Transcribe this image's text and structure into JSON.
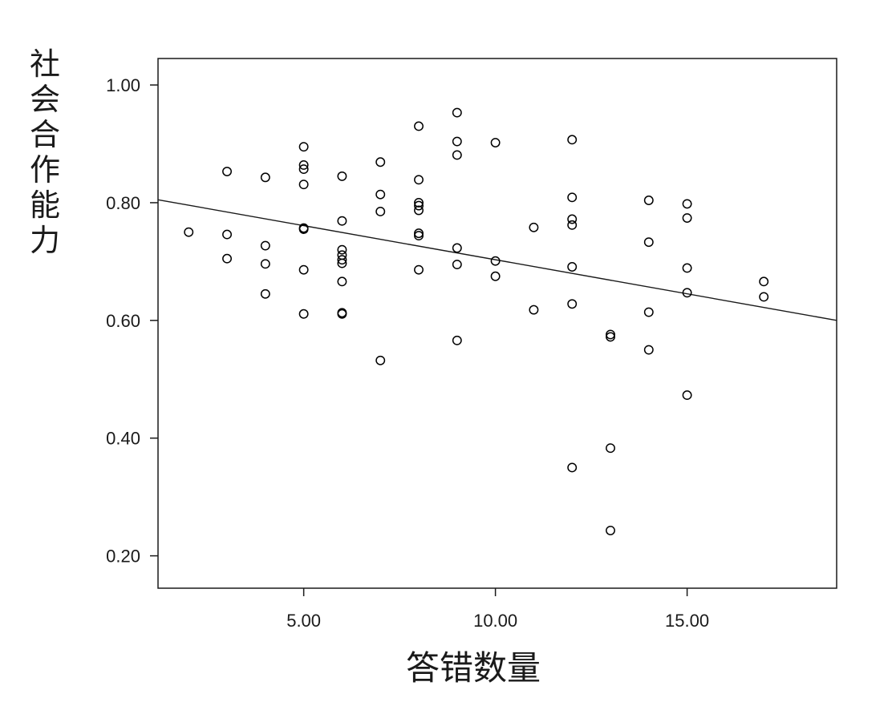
{
  "chart_data": {
    "type": "scatter",
    "title": "",
    "xlabel": "答错数量",
    "ylabel": "社会合作能力",
    "xlim": [
      1.2,
      18.9
    ],
    "ylim": [
      0.145,
      1.045
    ],
    "x_ticks": [
      {
        "value": 5,
        "label": "5.00"
      },
      {
        "value": 10,
        "label": "10.00"
      },
      {
        "value": 15,
        "label": "15.00"
      }
    ],
    "y_ticks": [
      {
        "value": 0.2,
        "label": "0.20"
      },
      {
        "value": 0.4,
        "label": "0.40"
      },
      {
        "value": 0.6,
        "label": "0.60"
      },
      {
        "value": 0.8,
        "label": "0.80"
      },
      {
        "value": 1.0,
        "label": "1.00"
      }
    ],
    "grid": false,
    "legend": "none",
    "marker": "open-circle",
    "marker_color": "#000000",
    "fit_line": {
      "x": [
        1.2,
        18.9
      ],
      "y": [
        0.805,
        0.6
      ]
    },
    "points": [
      {
        "x": 2,
        "y": 0.75
      },
      {
        "x": 3,
        "y": 0.853
      },
      {
        "x": 3,
        "y": 0.746
      },
      {
        "x": 3,
        "y": 0.705
      },
      {
        "x": 4,
        "y": 0.843
      },
      {
        "x": 4,
        "y": 0.727
      },
      {
        "x": 4,
        "y": 0.696
      },
      {
        "x": 4,
        "y": 0.645
      },
      {
        "x": 5,
        "y": 0.895
      },
      {
        "x": 5,
        "y": 0.864
      },
      {
        "x": 5,
        "y": 0.857
      },
      {
        "x": 5,
        "y": 0.831
      },
      {
        "x": 5,
        "y": 0.757
      },
      {
        "x": 5,
        "y": 0.755
      },
      {
        "x": 5,
        "y": 0.686
      },
      {
        "x": 5,
        "y": 0.611
      },
      {
        "x": 6,
        "y": 0.845
      },
      {
        "x": 6,
        "y": 0.769
      },
      {
        "x": 6,
        "y": 0.72
      },
      {
        "x": 6,
        "y": 0.711
      },
      {
        "x": 6,
        "y": 0.703
      },
      {
        "x": 6,
        "y": 0.697
      },
      {
        "x": 6,
        "y": 0.666
      },
      {
        "x": 6,
        "y": 0.613
      },
      {
        "x": 6,
        "y": 0.611
      },
      {
        "x": 7,
        "y": 0.869
      },
      {
        "x": 7,
        "y": 0.814
      },
      {
        "x": 7,
        "y": 0.785
      },
      {
        "x": 7,
        "y": 0.532
      },
      {
        "x": 8,
        "y": 0.93
      },
      {
        "x": 8,
        "y": 0.839
      },
      {
        "x": 8,
        "y": 0.8
      },
      {
        "x": 8,
        "y": 0.795
      },
      {
        "x": 8,
        "y": 0.787
      },
      {
        "x": 8,
        "y": 0.748
      },
      {
        "x": 8,
        "y": 0.744
      },
      {
        "x": 8,
        "y": 0.686
      },
      {
        "x": 9,
        "y": 0.953
      },
      {
        "x": 9,
        "y": 0.904
      },
      {
        "x": 9,
        "y": 0.881
      },
      {
        "x": 9,
        "y": 0.723
      },
      {
        "x": 9,
        "y": 0.695
      },
      {
        "x": 9,
        "y": 0.566
      },
      {
        "x": 10,
        "y": 0.902
      },
      {
        "x": 10,
        "y": 0.701
      },
      {
        "x": 10,
        "y": 0.675
      },
      {
        "x": 11,
        "y": 0.758
      },
      {
        "x": 11,
        "y": 0.618
      },
      {
        "x": 12,
        "y": 0.907
      },
      {
        "x": 12,
        "y": 0.809
      },
      {
        "x": 12,
        "y": 0.772
      },
      {
        "x": 12,
        "y": 0.762
      },
      {
        "x": 12,
        "y": 0.691
      },
      {
        "x": 12,
        "y": 0.628
      },
      {
        "x": 12,
        "y": 0.35
      },
      {
        "x": 13,
        "y": 0.576
      },
      {
        "x": 13,
        "y": 0.572
      },
      {
        "x": 13,
        "y": 0.383
      },
      {
        "x": 13,
        "y": 0.243
      },
      {
        "x": 14,
        "y": 0.804
      },
      {
        "x": 14,
        "y": 0.733
      },
      {
        "x": 14,
        "y": 0.614
      },
      {
        "x": 14,
        "y": 0.55
      },
      {
        "x": 15,
        "y": 0.798
      },
      {
        "x": 15,
        "y": 0.774
      },
      {
        "x": 15,
        "y": 0.689
      },
      {
        "x": 15,
        "y": 0.647
      },
      {
        "x": 15,
        "y": 0.473
      },
      {
        "x": 17,
        "y": 0.666
      },
      {
        "x": 17,
        "y": 0.64
      }
    ]
  }
}
